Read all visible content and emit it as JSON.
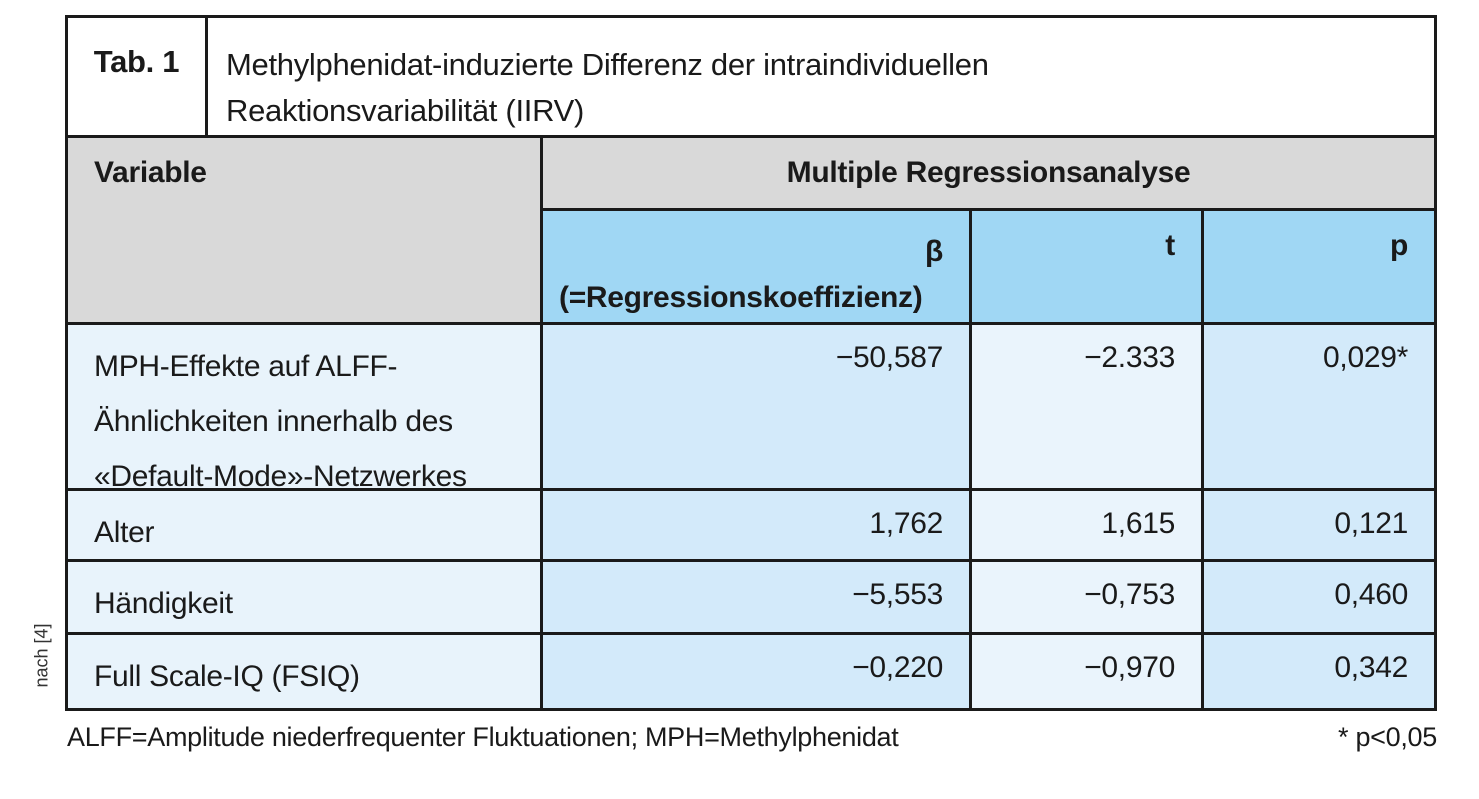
{
  "table": {
    "tag": "Tab. 1",
    "title": "Methylphenidat-induzierte Differenz der intraindividuellen\nReaktionsvariabilität (IIRV)",
    "header": {
      "variable": "Variable",
      "group": "Multiple Regressionsanalyse",
      "beta_symbol": "β",
      "beta_caption": "(=Regressionskoeffizienz)",
      "t": "t",
      "p": "p"
    },
    "rows": [
      {
        "variable": "MPH-Effekte auf ALFF-\nÄhnlichkeiten innerhalb des\n«Default-Mode»-Netzwerkes",
        "beta": "−50,587",
        "t": "−2.333",
        "p": "0,029*"
      },
      {
        "variable": "Alter",
        "beta": "1,762",
        "t": "1,615",
        "p": "0,121"
      },
      {
        "variable": "Händigkeit",
        "beta": "−5,553",
        "t": "−0,753",
        "p": "0,460"
      },
      {
        "variable": "Full Scale-IQ (FSIQ)",
        "beta": "−0,220",
        "t": "−0,970",
        "p": "0,342"
      }
    ],
    "footnote_left": "ALFF=Amplitude niederfrequenter Fluktuationen; MPH=Methylphenidat",
    "footnote_right": "* p<0,05",
    "source": "nach [4]"
  },
  "colors": {
    "header_gray": "#d9d9d9",
    "subheader_blue": "#a0d7f4",
    "cell_blue_dark": "#d3eafa",
    "cell_blue_light": "#eaf4fc",
    "border": "#1a1a1a",
    "text": "#1a1a1a"
  }
}
